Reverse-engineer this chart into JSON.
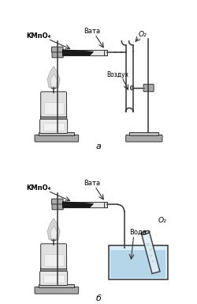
{
  "title_a": "а",
  "title_b": "б",
  "label_kmno4": "KMnO₄",
  "label_vata": "Вата",
  "label_vozduh": "Воздух",
  "label_voda": "Вода",
  "label_o2": "O₂",
  "stand_color": "#aaaaaa",
  "dark_color": "#333333",
  "lw_thin": 0.7,
  "lw_medium": 1.1,
  "lw_thick": 1.8
}
